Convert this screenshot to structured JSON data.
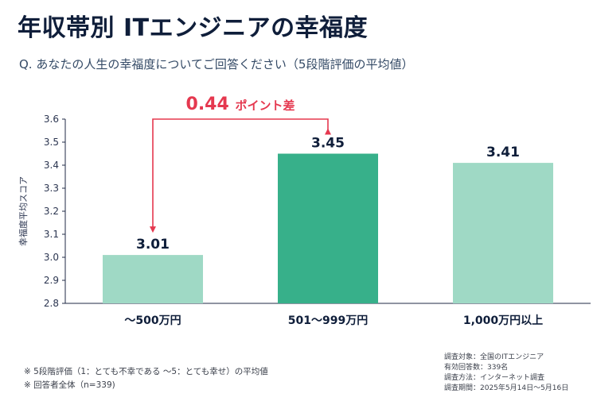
{
  "header": {
    "title": "年収帯別 ITエンジニアの幸福度",
    "subtitle": "Q. あなたの人生の幸福度についてご回答ください（5段階評価の平均値）"
  },
  "chart_data": {
    "type": "bar",
    "categories": [
      "〜500万円",
      "501〜999万円",
      "1,000万円以上"
    ],
    "values": [
      3.01,
      3.45,
      3.41
    ],
    "value_labels": [
      "3.01",
      "3.45",
      "3.41"
    ],
    "ylabel": "幸福度平均スコア",
    "ylim": [
      2.8,
      3.6
    ],
    "yticks": [
      "2.8",
      "2.9",
      "3.0",
      "3.1",
      "3.2",
      "3.3",
      "3.4",
      "3.5",
      "3.6"
    ],
    "grid": false,
    "colors": [
      "#9fd9c5",
      "#37b08a",
      "#9fd9c5"
    ],
    "annotation": {
      "value": "0.44",
      "text": "ポイント差",
      "color": "#e5384f"
    }
  },
  "footnotes": [
    "※ 5段階評価（1：とても不幸である 〜5：とても幸せ）の平均値",
    "※ 回答者全体（n=339)"
  ],
  "survey_meta": [
    "調査対象：全国のITエンジニア",
    "有効回答数：339名",
    "調査方法：インターネット調査",
    "調査期間：2025年5月14日〜5月16日"
  ]
}
